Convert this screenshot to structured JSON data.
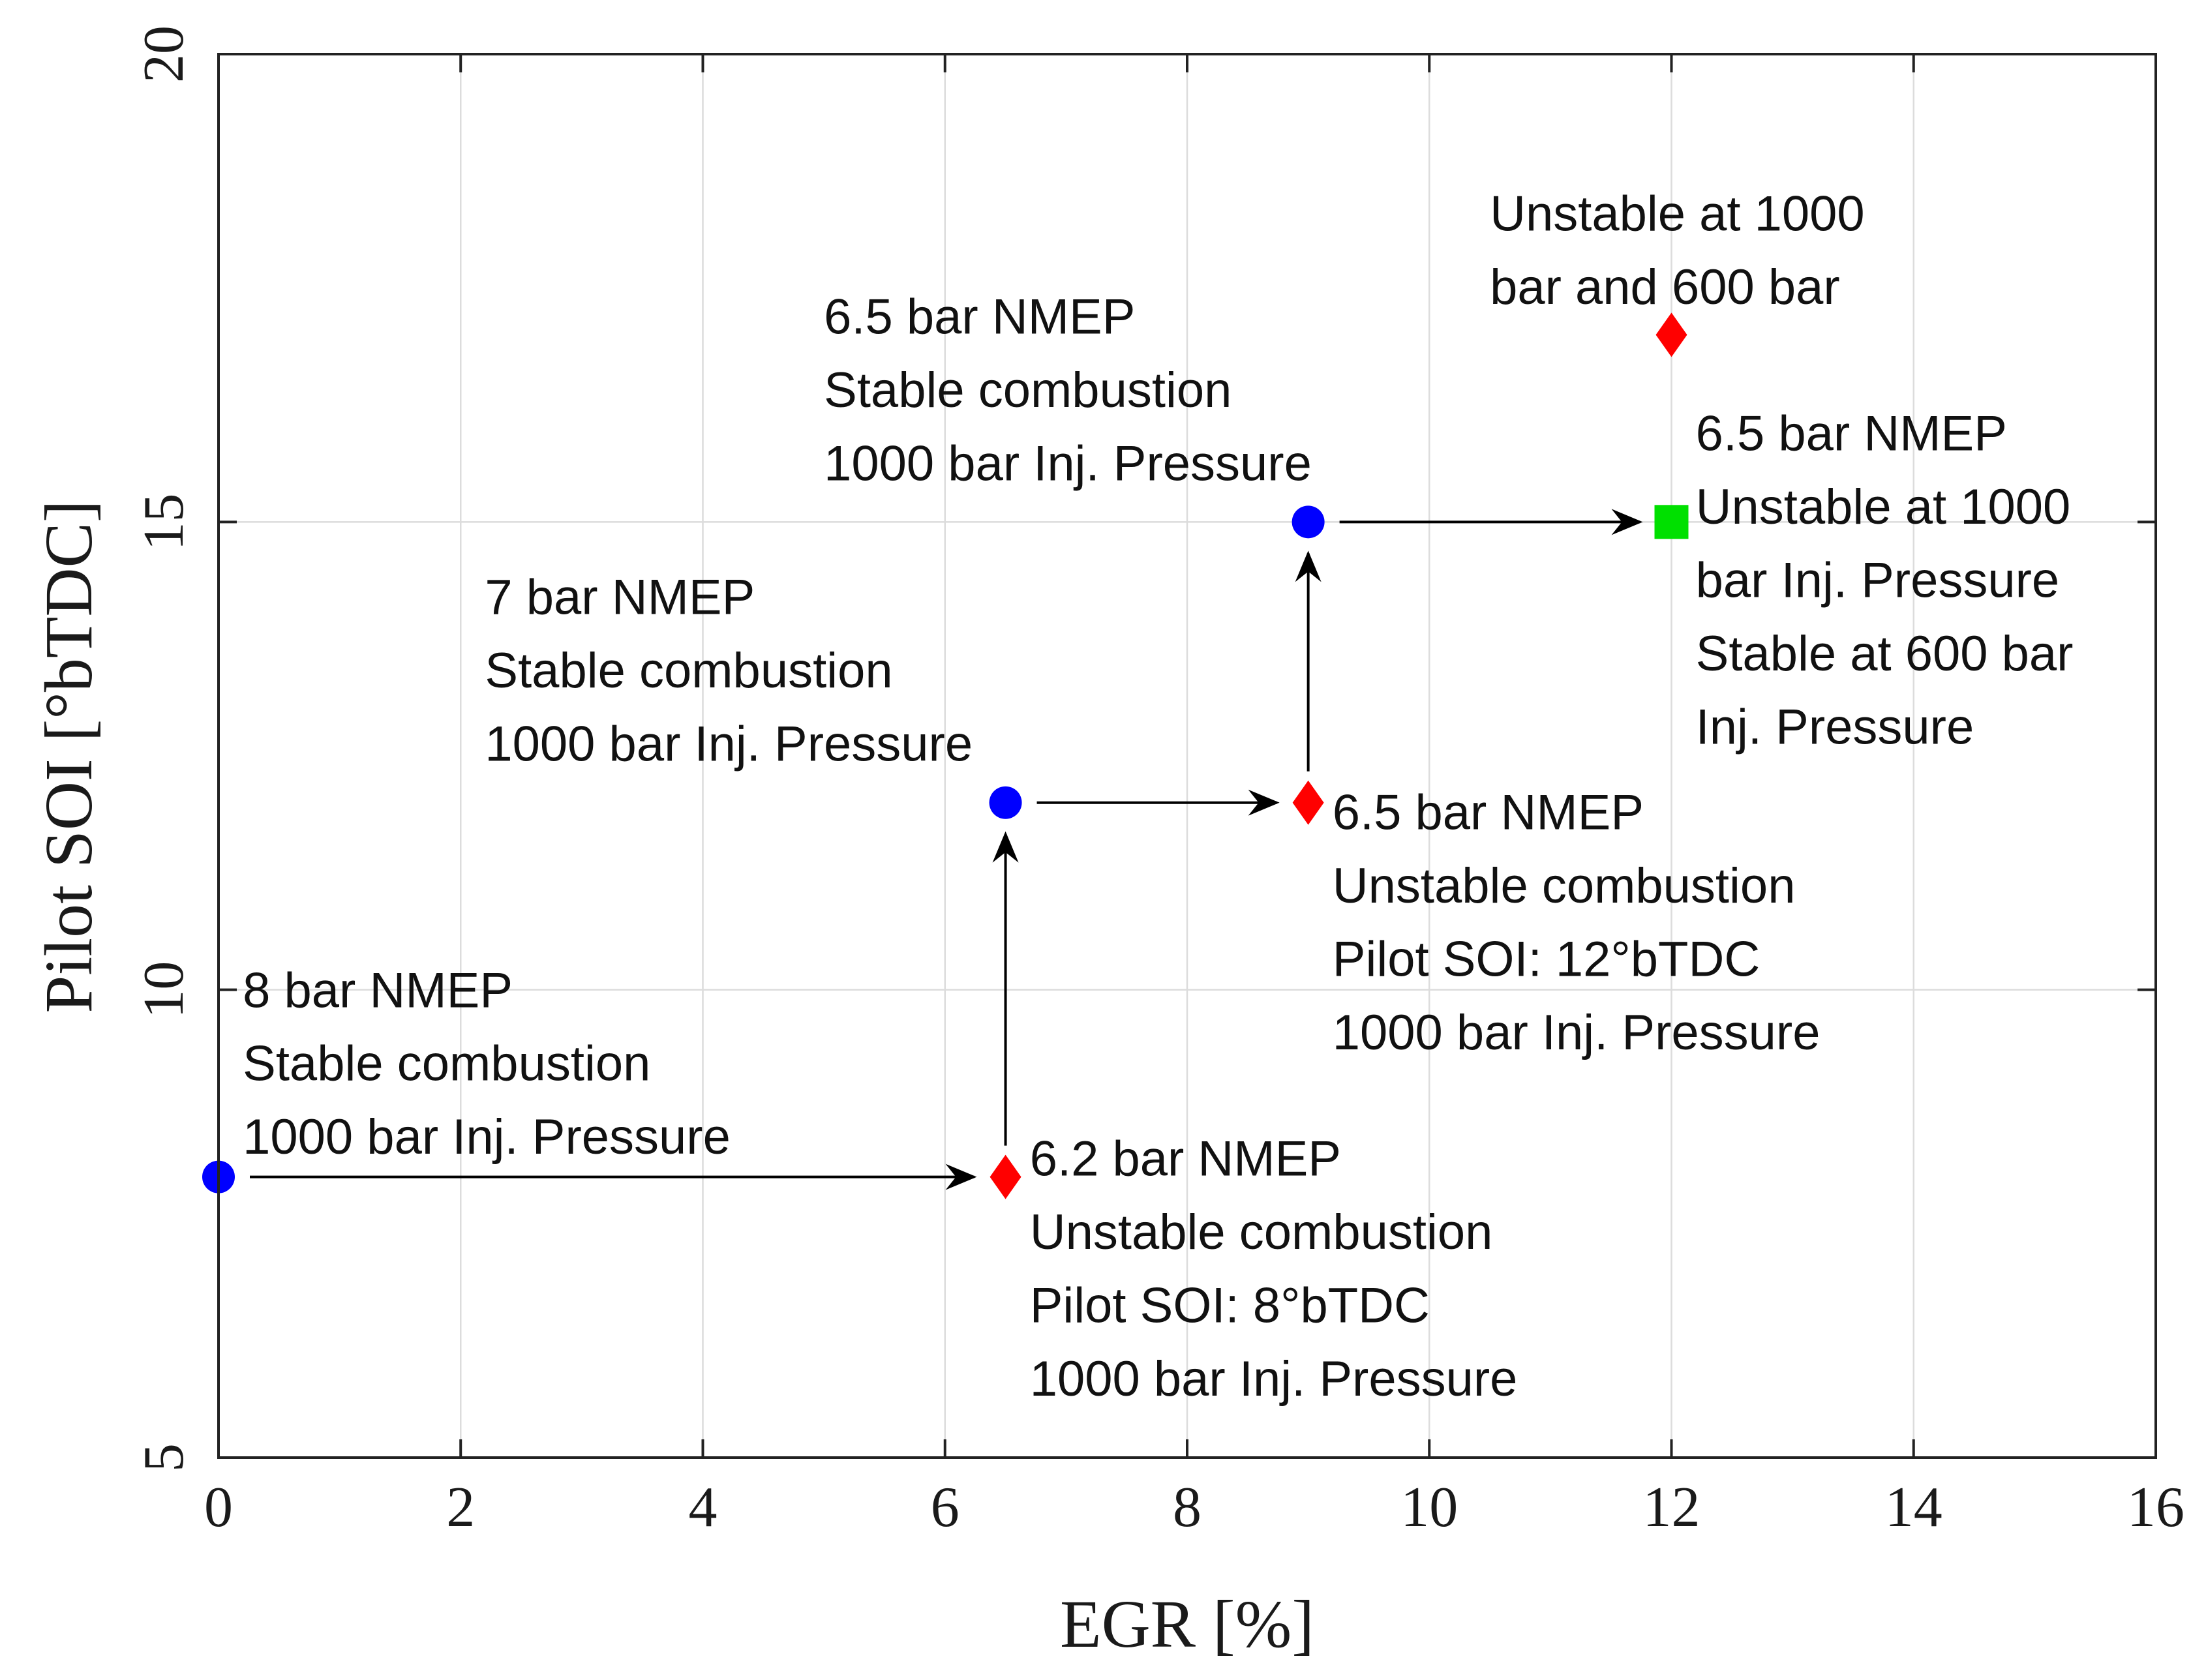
{
  "chart_data": {
    "type": "scatter",
    "xlabel": "EGR [%]",
    "ylabel": "Pilot SOI [°bTDC]",
    "xlim": [
      0,
      16
    ],
    "ylim": [
      5,
      20
    ],
    "grid": true,
    "x_ticks": [
      "0",
      "2",
      "4",
      "6",
      "8",
      "10",
      "12",
      "14",
      "16"
    ],
    "y_ticks": [
      "5",
      "10",
      "15",
      "20"
    ],
    "colors": {
      "stable": "#0000ff",
      "unstable": "#ff0000",
      "mixed": "#00e000"
    },
    "points": [
      {
        "x": 0,
        "y": 8,
        "marker": "circle",
        "color": "#0000ff",
        "status": "stable"
      },
      {
        "x": 6.5,
        "y": 8,
        "marker": "diamond",
        "color": "#ff0000",
        "status": "unstable"
      },
      {
        "x": 6.5,
        "y": 12,
        "marker": "circle",
        "color": "#0000ff",
        "status": "stable"
      },
      {
        "x": 9,
        "y": 12,
        "marker": "diamond",
        "color": "#ff0000",
        "status": "unstable"
      },
      {
        "x": 9,
        "y": 15,
        "marker": "circle",
        "color": "#0000ff",
        "status": "stable"
      },
      {
        "x": 12,
        "y": 15,
        "marker": "square",
        "color": "#00e000",
        "status": "mixed"
      },
      {
        "x": 12,
        "y": 17,
        "marker": "diamond",
        "color": "#ff0000",
        "status": "unstable"
      }
    ],
    "arrows": [
      {
        "from": [
          0,
          8
        ],
        "to": [
          6.5,
          8
        ]
      },
      {
        "from": [
          6.5,
          8
        ],
        "to": [
          6.5,
          12
        ]
      },
      {
        "from": [
          6.5,
          12
        ],
        "to": [
          9,
          12
        ]
      },
      {
        "from": [
          9,
          12
        ],
        "to": [
          9,
          15
        ]
      },
      {
        "from": [
          9,
          15
        ],
        "to": [
          12,
          15
        ]
      }
    ],
    "annotations": [
      {
        "x": 0.2,
        "y": 10,
        "lines": [
          "8 bar NMEP",
          "Stable combustion",
          "1000 bar Inj. Pressure"
        ]
      },
      {
        "x": 6.7,
        "y": 8.2,
        "lines": [
          "6.2 bar NMEP",
          "Unstable combustion",
          "Pilot SOI: 8°bTDC",
          "1000 bar Inj. Pressure"
        ]
      },
      {
        "x": 2.2,
        "y": 14.2,
        "lines": [
          "7 bar NMEP",
          "Stable combustion",
          "1000 bar Inj. Pressure"
        ]
      },
      {
        "x": 9.2,
        "y": 11.9,
        "lines": [
          "6.5 bar NMEP",
          "Unstable combustion",
          "Pilot SOI: 12°bTDC",
          "1000 bar Inj. Pressure"
        ]
      },
      {
        "x": 5.0,
        "y": 17.2,
        "lines": [
          "6.5 bar NMEP",
          "Stable combustion",
          "1000 bar Inj. Pressure"
        ]
      },
      {
        "x": 10.5,
        "y": 18.3,
        "lines": [
          "Unstable at 1000",
          "bar and 600 bar"
        ]
      },
      {
        "x": 12.2,
        "y": 15.95,
        "lines": [
          "6.5 bar NMEP",
          "Unstable at 1000",
          "bar Inj. Pressure",
          "Stable at 600 bar",
          "Inj. Pressure"
        ]
      }
    ]
  }
}
